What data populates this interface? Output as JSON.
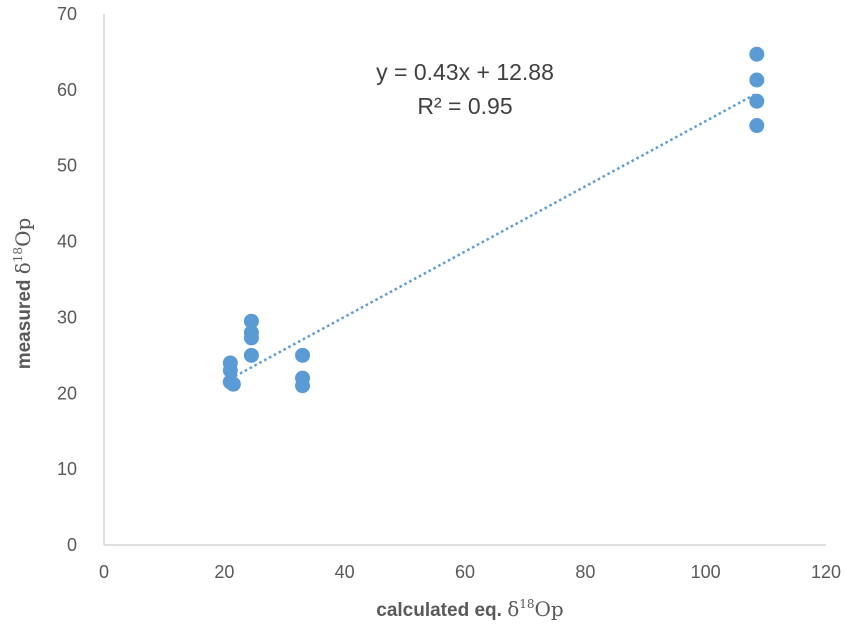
{
  "chart_data": {
    "type": "scatter",
    "x": [
      21,
      21,
      21,
      21,
      21.5,
      24.5,
      24.5,
      24.5,
      24.5,
      33,
      33,
      33,
      108.5,
      108.5,
      108.5,
      108.5
    ],
    "y": [
      24,
      23,
      21.5,
      21.5,
      21.2,
      29.5,
      28,
      27.3,
      25,
      25,
      22,
      21,
      64.7,
      61.3,
      58.5,
      55.3
    ],
    "trendline": {
      "slope": 0.43,
      "intercept": 12.88,
      "x_range": [
        21,
        108.5
      ],
      "style": "dotted"
    },
    "annotations": {
      "equation": "y = 0.43x + 12.88",
      "r_squared": "R² = 0.95"
    },
    "xlabel": {
      "prefix": "calculated eq. ",
      "symbol": "δ",
      "sup": "18",
      "suffix": "Op"
    },
    "ylabel": {
      "prefix": "measured  ",
      "symbol": "δ",
      "sup": "18",
      "suffix": "Op"
    },
    "xlim": [
      0,
      120
    ],
    "ylim": [
      0,
      70
    ],
    "xticks": [
      "0",
      "20",
      "40",
      "60",
      "80",
      "100",
      "120"
    ],
    "yticks": [
      "0",
      "10",
      "20",
      "30",
      "40",
      "50",
      "60",
      "70"
    ],
    "grid": false,
    "legend": "none",
    "colors": {
      "marker": "#5B9BD5",
      "trendline": "#5B9BD5",
      "axis": "#BFBFBF"
    }
  }
}
